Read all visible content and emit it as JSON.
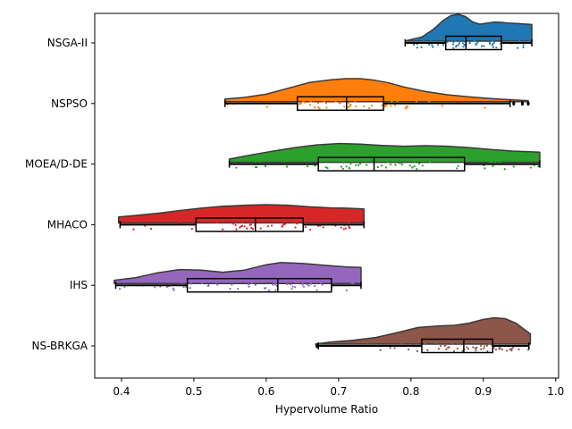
{
  "chart_data": {
    "type": "raincloud",
    "xlabel": "Hypervolume Ratio",
    "ylabel": "",
    "xlim": [
      0.363,
      1.004
    ],
    "xticks": [
      "0.4",
      "0.5",
      "0.6",
      "0.7",
      "0.8",
      "0.9",
      "1.0"
    ],
    "grid": false,
    "series": [
      {
        "name": "NSGA-II",
        "color": "#1f77b4",
        "min": 0.792,
        "q1": 0.848,
        "median": 0.876,
        "q3": 0.925,
        "max": 0.967,
        "outliers": [],
        "density": [
          [
            0.792,
            0.0
          ],
          [
            0.8,
            0.06
          ],
          [
            0.815,
            0.15
          ],
          [
            0.83,
            0.42
          ],
          [
            0.845,
            0.78
          ],
          [
            0.855,
            0.95
          ],
          [
            0.865,
            1.0
          ],
          [
            0.875,
            0.92
          ],
          [
            0.885,
            0.72
          ],
          [
            0.895,
            0.63
          ],
          [
            0.905,
            0.67
          ],
          [
            0.915,
            0.71
          ],
          [
            0.925,
            0.7
          ],
          [
            0.935,
            0.67
          ],
          [
            0.945,
            0.66
          ],
          [
            0.955,
            0.64
          ],
          [
            0.967,
            0.62
          ]
        ],
        "n_points": 70
      },
      {
        "name": "NSPSO",
        "color": "#ff7f0e",
        "min": 0.543,
        "q1": 0.643,
        "median": 0.711,
        "q3": 0.762,
        "max": 0.937,
        "outliers": [
          0.942,
          0.954,
          0.962
        ],
        "density": [
          [
            0.543,
            0.1
          ],
          [
            0.57,
            0.16
          ],
          [
            0.6,
            0.28
          ],
          [
            0.63,
            0.5
          ],
          [
            0.66,
            0.72
          ],
          [
            0.69,
            0.82
          ],
          [
            0.71,
            0.86
          ],
          [
            0.73,
            0.86
          ],
          [
            0.75,
            0.8
          ],
          [
            0.77,
            0.7
          ],
          [
            0.79,
            0.55
          ],
          [
            0.82,
            0.38
          ],
          [
            0.85,
            0.26
          ],
          [
            0.88,
            0.18
          ],
          [
            0.91,
            0.12
          ],
          [
            0.94,
            0.07
          ],
          [
            0.962,
            0.04
          ]
        ],
        "n_points": 70
      },
      {
        "name": "MOEA/D-DE",
        "color": "#2ca02c",
        "min": 0.549,
        "q1": 0.672,
        "median": 0.749,
        "q3": 0.874,
        "max": 0.978,
        "outliers": [],
        "density": [
          [
            0.549,
            0.12
          ],
          [
            0.58,
            0.28
          ],
          [
            0.61,
            0.42
          ],
          [
            0.64,
            0.55
          ],
          [
            0.67,
            0.65
          ],
          [
            0.7,
            0.7
          ],
          [
            0.73,
            0.68
          ],
          [
            0.76,
            0.63
          ],
          [
            0.79,
            0.6
          ],
          [
            0.82,
            0.62
          ],
          [
            0.85,
            0.6
          ],
          [
            0.88,
            0.55
          ],
          [
            0.91,
            0.48
          ],
          [
            0.94,
            0.42
          ],
          [
            0.978,
            0.38
          ]
        ],
        "n_points": 70
      },
      {
        "name": "MHACO",
        "color": "#d62728",
        "min": 0.398,
        "q1": 0.503,
        "median": 0.585,
        "q3": 0.651,
        "max": 0.735,
        "outliers": [],
        "density": [
          [
            0.396,
            0.22
          ],
          [
            0.42,
            0.28
          ],
          [
            0.45,
            0.36
          ],
          [
            0.48,
            0.46
          ],
          [
            0.51,
            0.55
          ],
          [
            0.54,
            0.62
          ],
          [
            0.57,
            0.66
          ],
          [
            0.6,
            0.68
          ],
          [
            0.63,
            0.66
          ],
          [
            0.66,
            0.6
          ],
          [
            0.69,
            0.56
          ],
          [
            0.71,
            0.55
          ],
          [
            0.735,
            0.52
          ]
        ],
        "n_points": 70
      },
      {
        "name": "IHS",
        "color": "#9467bd",
        "min": 0.392,
        "q1": 0.491,
        "median": 0.616,
        "q3": 0.69,
        "max": 0.731,
        "outliers": [],
        "density": [
          [
            0.39,
            0.12
          ],
          [
            0.42,
            0.22
          ],
          [
            0.45,
            0.4
          ],
          [
            0.48,
            0.52
          ],
          [
            0.51,
            0.5
          ],
          [
            0.54,
            0.42
          ],
          [
            0.57,
            0.5
          ],
          [
            0.6,
            0.7
          ],
          [
            0.62,
            0.78
          ],
          [
            0.65,
            0.75
          ],
          [
            0.68,
            0.68
          ],
          [
            0.71,
            0.62
          ],
          [
            0.731,
            0.6
          ]
        ],
        "n_points": 70
      },
      {
        "name": "NS-BRKGA",
        "color": "#8c564b",
        "min": 0.672,
        "q1": 0.815,
        "median": 0.873,
        "q3": 0.913,
        "max": 0.963,
        "outliers": [
          0.67
        ],
        "density": [
          [
            0.668,
            0.0
          ],
          [
            0.69,
            0.08
          ],
          [
            0.72,
            0.14
          ],
          [
            0.75,
            0.24
          ],
          [
            0.78,
            0.42
          ],
          [
            0.81,
            0.62
          ],
          [
            0.84,
            0.68
          ],
          [
            0.86,
            0.7
          ],
          [
            0.88,
            0.78
          ],
          [
            0.9,
            0.92
          ],
          [
            0.915,
            0.98
          ],
          [
            0.93,
            0.95
          ],
          [
            0.945,
            0.78
          ],
          [
            0.955,
            0.58
          ],
          [
            0.965,
            0.38
          ]
        ],
        "n_points": 70
      }
    ]
  }
}
